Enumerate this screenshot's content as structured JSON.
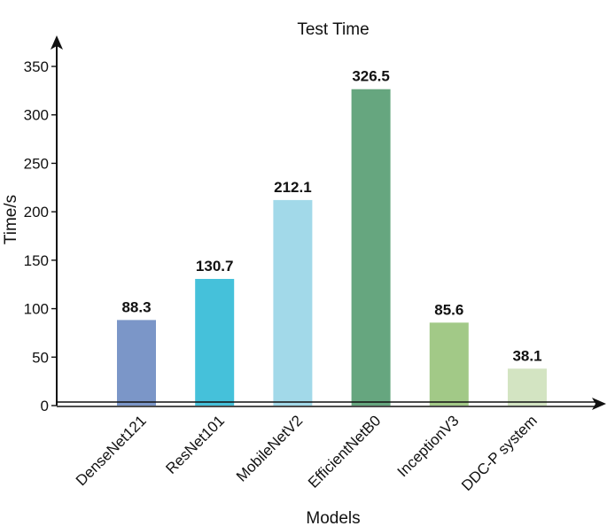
{
  "chart_data": {
    "type": "bar",
    "title": "Test Time",
    "xlabel": "Models",
    "ylabel": "Time/s",
    "categories": [
      "DenseNet121",
      "ResNet101",
      "MobileNetV2",
      "EfficientNetB0",
      "InceptionV3",
      "DDC-P system"
    ],
    "values": [
      88.3,
      130.7,
      212.1,
      326.5,
      85.6,
      38.1
    ],
    "data_labels": [
      "88.3",
      "130.7",
      "212.1",
      "326.5",
      "85.6",
      "38.1"
    ],
    "colors": [
      "#7b96c8",
      "#45c1da",
      "#a2d9e9",
      "#66a67f",
      "#a2c987",
      "#d3e4c2"
    ],
    "ylim": [
      0,
      350
    ],
    "yticks": [
      0,
      50,
      100,
      150,
      200,
      250,
      300,
      350
    ],
    "grid": false,
    "legend": "none"
  }
}
